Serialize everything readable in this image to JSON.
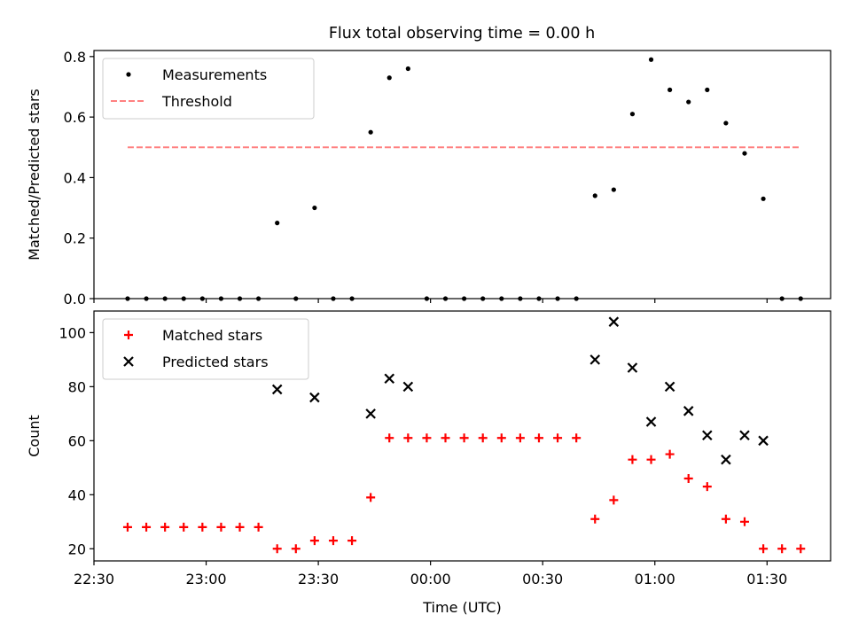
{
  "figure": {
    "title": "Flux total observing time = 0.00 h"
  },
  "chart_data": [
    {
      "type": "scatter",
      "title": "Flux total observing time = 0.00 h",
      "xlabel": "",
      "ylabel": "Matched/Predicted stars",
      "xlim": [
        "22:30",
        "01:47"
      ],
      "ylim": [
        0,
        0.82
      ],
      "y_ticks": [
        0.0,
        0.2,
        0.4,
        0.6,
        0.8
      ],
      "y_tick_labels": [
        "0.0",
        "0.2",
        "0.4",
        "0.6",
        "0.8"
      ],
      "grid": false,
      "legend": {
        "placement": "upper-left",
        "entries": [
          "Measurements",
          "Threshold"
        ]
      },
      "series": [
        {
          "name": "Measurements",
          "marker": "dot",
          "color": "#000000",
          "x": [
            "22:39",
            "22:44",
            "22:49",
            "22:54",
            "22:59",
            "23:04",
            "23:09",
            "23:14",
            "23:19",
            "23:24",
            "23:29",
            "23:34",
            "23:39",
            "23:44",
            "23:49",
            "23:54",
            "23:59",
            "00:04",
            "00:09",
            "00:14",
            "00:19",
            "00:24",
            "00:29",
            "00:34",
            "00:39",
            "00:44",
            "00:49",
            "00:54",
            "00:59",
            "01:04",
            "01:09",
            "01:14",
            "01:19",
            "01:24",
            "01:29",
            "01:34",
            "01:39"
          ],
          "y": [
            0,
            0,
            0,
            0,
            0,
            0,
            0,
            0,
            0.25,
            0,
            0.3,
            0,
            0,
            0.55,
            0.73,
            0.76,
            0,
            0,
            0,
            0,
            0,
            0,
            0,
            0,
            0,
            0.34,
            0.36,
            0.61,
            0.79,
            0.69,
            0.65,
            0.69,
            0.58,
            0.48,
            0.33,
            0,
            0
          ]
        },
        {
          "name": "Threshold",
          "style": "dashed",
          "color": "#ff8080",
          "x": [
            "22:39",
            "01:39"
          ],
          "y": [
            0.5,
            0.5
          ]
        }
      ]
    },
    {
      "type": "scatter",
      "xlabel": "Time (UTC)",
      "ylabel": "Count",
      "xlim": [
        "22:30",
        "01:47"
      ],
      "ylim": [
        15.5,
        108
      ],
      "y_ticks": [
        20,
        40,
        60,
        80,
        100
      ],
      "y_tick_labels": [
        "20",
        "40",
        "60",
        "80",
        "100"
      ],
      "x_ticks": [
        "22:30",
        "23:00",
        "23:30",
        "00:00",
        "00:30",
        "01:00",
        "01:30"
      ],
      "x_tick_labels": [
        "22:30",
        "23:00",
        "23:30",
        "00:00",
        "00:30",
        "01:00",
        "01:30"
      ],
      "grid": false,
      "legend": {
        "placement": "upper-left",
        "entries": [
          "Matched stars",
          "Predicted stars"
        ]
      },
      "series": [
        {
          "name": "Matched stars",
          "marker": "plus",
          "color": "#ff0000",
          "x": [
            "22:39",
            "22:44",
            "22:49",
            "22:54",
            "22:59",
            "23:04",
            "23:09",
            "23:14",
            "23:19",
            "23:24",
            "23:29",
            "23:34",
            "23:39",
            "23:44",
            "23:49",
            "23:54",
            "23:59",
            "00:04",
            "00:09",
            "00:14",
            "00:19",
            "00:24",
            "00:29",
            "00:34",
            "00:39",
            "00:44",
            "00:49",
            "00:54",
            "00:59",
            "01:04",
            "01:09",
            "01:14",
            "01:19",
            "01:24",
            "01:29",
            "01:34",
            "01:39"
          ],
          "y": [
            28,
            28,
            28,
            28,
            28,
            28,
            28,
            28,
            20,
            20,
            23,
            23,
            23,
            39,
            61,
            61,
            61,
            61,
            61,
            61,
            61,
            61,
            61,
            61,
            61,
            31,
            38,
            53,
            53,
            55,
            46,
            43,
            31,
            30,
            20,
            20,
            20
          ]
        },
        {
          "name": "Predicted stars",
          "marker": "x",
          "color": "#000000",
          "x": [
            "23:19",
            "23:29",
            "23:44",
            "23:49",
            "23:54",
            "00:44",
            "00:49",
            "00:54",
            "00:59",
            "01:04",
            "01:09",
            "01:14",
            "01:19",
            "01:24",
            "01:29"
          ],
          "y": [
            79,
            76,
            70,
            83,
            80,
            90,
            104,
            87,
            67,
            80,
            71,
            62,
            53,
            62,
            60
          ]
        }
      ]
    }
  ]
}
